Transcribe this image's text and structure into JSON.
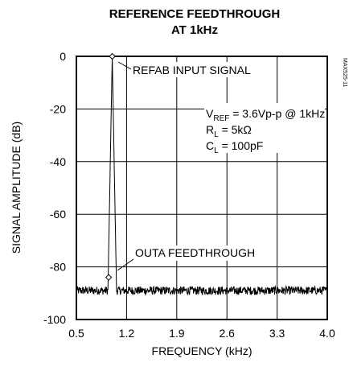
{
  "chart_data": {
    "type": "line",
    "title_line1": "REFERENCE FEEDTHROUGH",
    "title_line2": "AT 1kHz",
    "xlabel": "FREQUENCY (kHz)",
    "ylabel": "SIGNAL AMPLITUDE (dB)",
    "xlim": [
      0.5,
      4.0
    ],
    "ylim": [
      -100,
      0
    ],
    "x_ticks": [
      0.5,
      1.2,
      1.9,
      2.6,
      3.3,
      4.0
    ],
    "x_tick_labels": [
      "0.5",
      "1.2",
      "1.9",
      "2.6",
      "3.3",
      "4.0"
    ],
    "y_ticks": [
      0,
      -20,
      -40,
      -60,
      -80,
      -100
    ],
    "y_tick_labels": [
      "0",
      "-20",
      "-40",
      "-60",
      "-80",
      "-100"
    ],
    "grid": true,
    "series": [
      {
        "noise_floor_db": -89,
        "peak": {
          "x": 1.0,
          "y": 0
        }
      }
    ],
    "markers": [
      {
        "x": 1.0,
        "y": 0
      },
      {
        "x": 0.95,
        "y": -84
      }
    ],
    "annotations": {
      "refab": "REFAB INPUT SIGNAL",
      "outa": "OUTA FEEDTHROUGH",
      "vref_v": "V",
      "vref_sub": "REF",
      "vref_rest": " = 3.6Vp-p @ 1kHz",
      "rl_r": "R",
      "rl_sub": "L",
      "rl_rest": " = 5kΩ",
      "cl_c": "C",
      "cl_sub": "L",
      "cl_rest": " = 100pF"
    },
    "figure_code": "MAX525-11"
  }
}
